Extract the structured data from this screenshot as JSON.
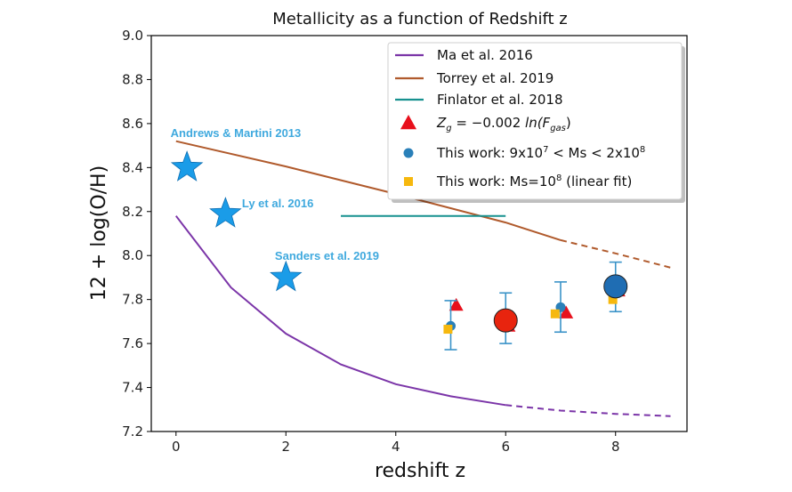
{
  "chart_data": {
    "type": "scatter",
    "title": "Metallicity as a function of Redshift z",
    "xlabel": "redshift z",
    "ylabel": "12 + log(O/H)",
    "xlim": [
      -0.45,
      9.3
    ],
    "ylim": [
      7.2,
      9.0
    ],
    "x_ticks": [
      0,
      2,
      4,
      6,
      8
    ],
    "y_ticks": [
      7.2,
      7.4,
      7.6,
      7.8,
      8.0,
      8.2,
      8.4,
      8.6,
      8.8,
      9.0
    ],
    "grid": false,
    "legend_position": "top-right",
    "colors": {
      "ma": "#7b35a8",
      "torrey": "#b05a2c",
      "finlator": "#17918f",
      "triangle": "#e8101c",
      "circle": "#2a80b9",
      "square": "#f6b80e",
      "star": "#1a9ce8",
      "annotation": "#3fa9de",
      "big_red": "#e8240e",
      "big_blue": "#1f6db3",
      "errorbar": "#3a93c8"
    },
    "series": [
      {
        "name": "Ma et al. 2016",
        "kind": "line",
        "color": "#7b35a8",
        "points": [
          [
            0,
            8.18
          ],
          [
            1,
            7.855
          ],
          [
            2,
            7.645
          ],
          [
            3,
            7.505
          ],
          [
            4,
            7.415
          ],
          [
            5,
            7.36
          ],
          [
            6,
            7.32
          ]
        ],
        "dashed_points": [
          [
            6,
            7.32
          ],
          [
            7,
            7.295
          ],
          [
            8,
            7.28
          ],
          [
            9,
            7.27
          ]
        ]
      },
      {
        "name": "Torrey et al. 2019",
        "kind": "line",
        "color": "#b05a2c",
        "points": [
          [
            0,
            8.52
          ],
          [
            2,
            8.405
          ],
          [
            4,
            8.28
          ],
          [
            6,
            8.15
          ],
          [
            7,
            8.07
          ]
        ],
        "dashed_points": [
          [
            7,
            8.07
          ],
          [
            8,
            8.01
          ],
          [
            9,
            7.945
          ]
        ]
      },
      {
        "name": "Finlator et al. 2018",
        "kind": "line",
        "color": "#17918f",
        "points": [
          [
            3,
            8.18
          ],
          [
            6,
            8.18
          ]
        ]
      },
      {
        "name": "$Z_g = -0.002\\ ln(F_{gas})$",
        "legend_parts": [
          "Z",
          "g",
          " = −0.002 ",
          "ln(F",
          "gas",
          ")"
        ],
        "kind": "triangle",
        "color": "#e8101c",
        "points": [
          [
            5.1,
            7.775
          ],
          [
            6.05,
            7.68
          ],
          [
            7.1,
            7.74
          ],
          [
            8.05,
            7.84
          ]
        ]
      },
      {
        "name": "This work: 9x10^7 < Ms < 2x10^8",
        "legend_parts": [
          "This work: 9x10",
          "7",
          " < Ms < 2x10",
          "8"
        ],
        "kind": "circle",
        "color": "#2a80b9",
        "points": [
          [
            5.0,
            7.68
          ],
          [
            7.0,
            7.765
          ]
        ],
        "errorbars": [
          {
            "x": 5.0,
            "y": 7.68,
            "low": 7.572,
            "high": 7.795
          },
          {
            "x": 6.0,
            "y": 7.705,
            "low": 7.6,
            "high": 7.83
          },
          {
            "x": 7.0,
            "y": 7.765,
            "low": 7.652,
            "high": 7.88
          },
          {
            "x": 8.0,
            "y": 7.86,
            "low": 7.745,
            "high": 7.97
          }
        ]
      },
      {
        "name": "This work: Ms=10^8 (linear fit)",
        "legend_parts": [
          "This work: Ms=10",
          "8",
          " (linear fit)"
        ],
        "kind": "square",
        "color": "#f6b80e",
        "points": [
          [
            4.95,
            7.665
          ],
          [
            5.9,
            7.705
          ],
          [
            6.9,
            7.735
          ],
          [
            7.95,
            7.8
          ]
        ]
      }
    ],
    "big_markers": [
      {
        "x": 6.0,
        "y": 7.705,
        "color": "#e8240e"
      },
      {
        "x": 8.0,
        "y": 7.86,
        "color": "#1f6db3"
      }
    ],
    "star_points": [
      {
        "label": "Andrews & Martini 2013",
        "x": 0.2,
        "y": 8.4,
        "label_x": -0.1,
        "label_y": 8.56
      },
      {
        "label": "Ly et al. 2016",
        "x": 0.9,
        "y": 8.19,
        "label_x": 1.2,
        "label_y": 8.24
      },
      {
        "label": "Sanders et al. 2019",
        "x": 2.0,
        "y": 7.9,
        "label_x": 1.8,
        "label_y": 8.0
      }
    ]
  }
}
